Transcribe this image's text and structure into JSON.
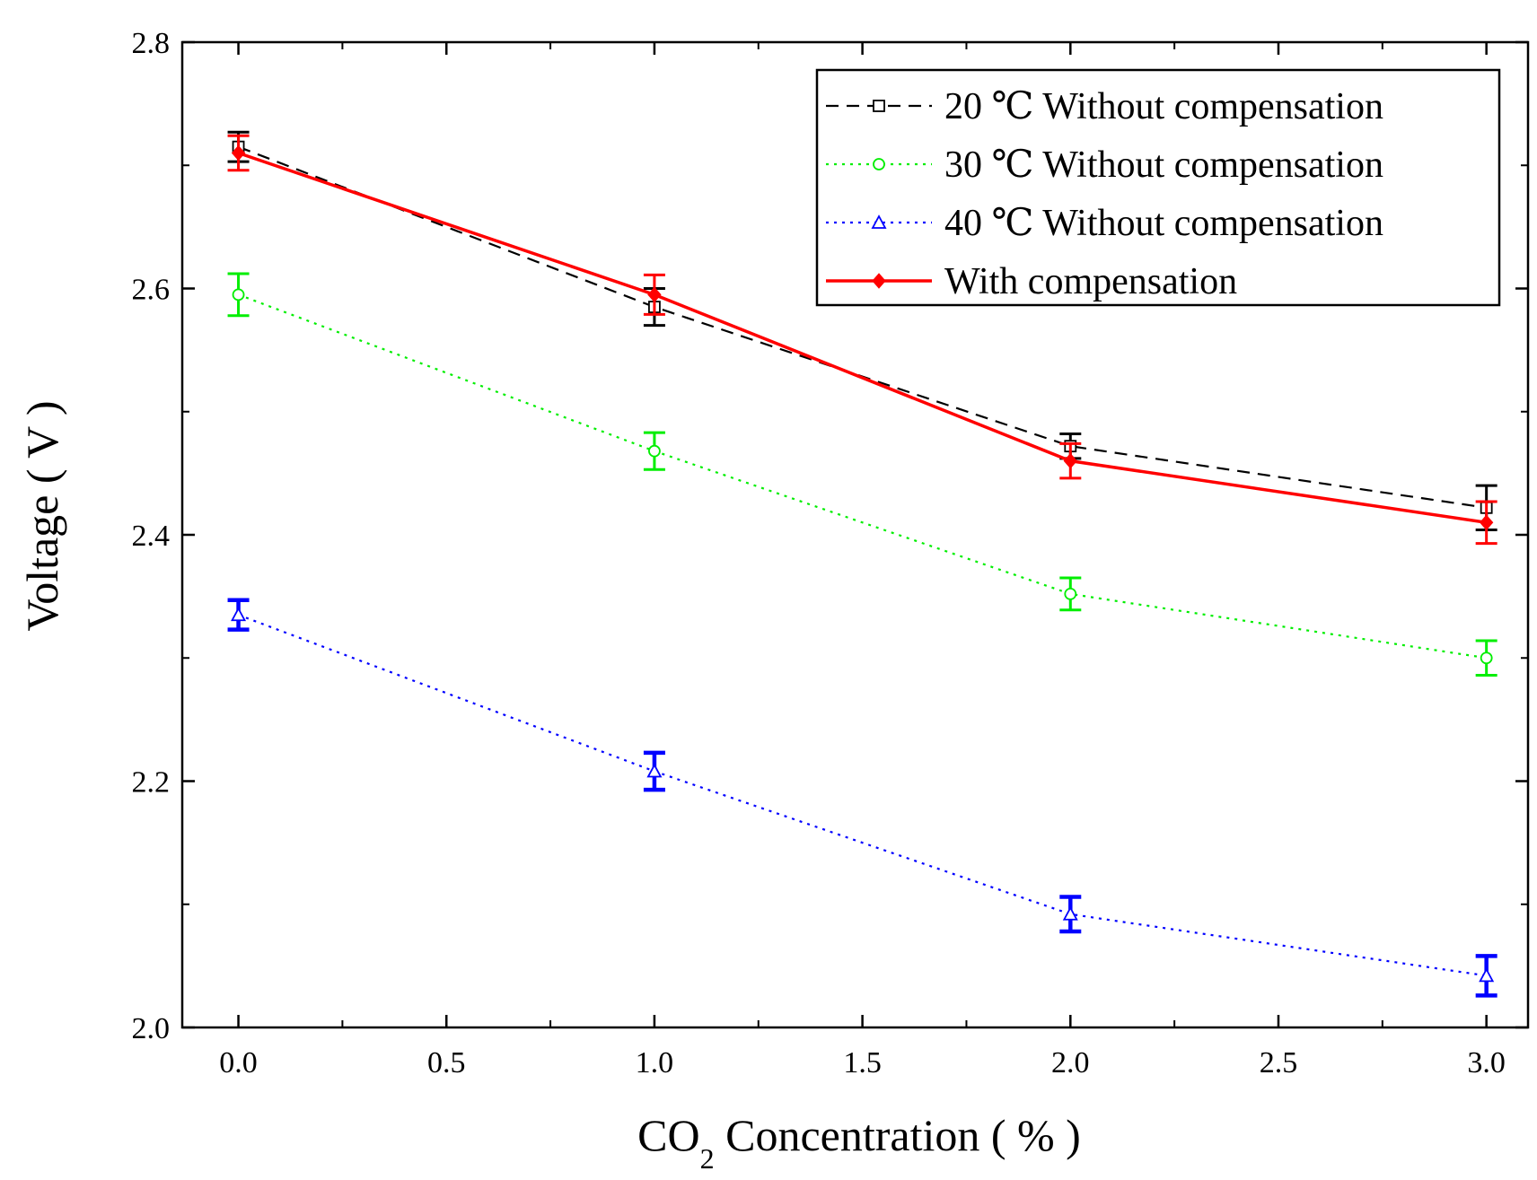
{
  "chart_data": {
    "type": "line",
    "title": "",
    "xlabel": {
      "prefix": "CO",
      "subscript": "2",
      "suffix": " Concentration ( % )"
    },
    "ylabel": "Voltage ( V )",
    "xlim": [
      -0.135,
      3.1
    ],
    "ylim": [
      2.0,
      2.8
    ],
    "xticks": [
      "0.0",
      "0.5",
      "1.0",
      "1.5",
      "2.0",
      "2.5",
      "3.0"
    ],
    "yticks": [
      "2.0",
      "2.2",
      "2.4",
      "2.6",
      "2.8"
    ],
    "x": [
      0,
      1,
      2,
      3
    ],
    "legend_position": "top-right",
    "series": [
      {
        "name": "20 ℃ Without compensation",
        "color": "#000000",
        "line_style": "dashed",
        "marker": "open-square",
        "values": [
          2.715,
          2.585,
          2.472,
          2.422
        ],
        "errors": [
          0.012,
          0.015,
          0.01,
          0.018
        ]
      },
      {
        "name": "30 ℃ Without compensation",
        "color": "#00ee00",
        "line_style": "dotted",
        "marker": "open-circle",
        "values": [
          2.595,
          2.468,
          2.352,
          2.3
        ],
        "errors": [
          0.017,
          0.015,
          0.013,
          0.014
        ]
      },
      {
        "name": "40 ℃ Without compensation",
        "color": "#0000ff",
        "line_style": "dotted",
        "marker": "open-triangle",
        "values": [
          2.335,
          2.208,
          2.092,
          2.042
        ],
        "errors": [
          0.012,
          0.015,
          0.014,
          0.016
        ]
      },
      {
        "name": "With compensation",
        "color": "#ff0000",
        "line_style": "solid",
        "marker": "filled-diamond",
        "values": [
          2.71,
          2.595,
          2.46,
          2.41
        ],
        "errors": [
          0.014,
          0.016,
          0.014,
          0.017
        ]
      }
    ]
  }
}
